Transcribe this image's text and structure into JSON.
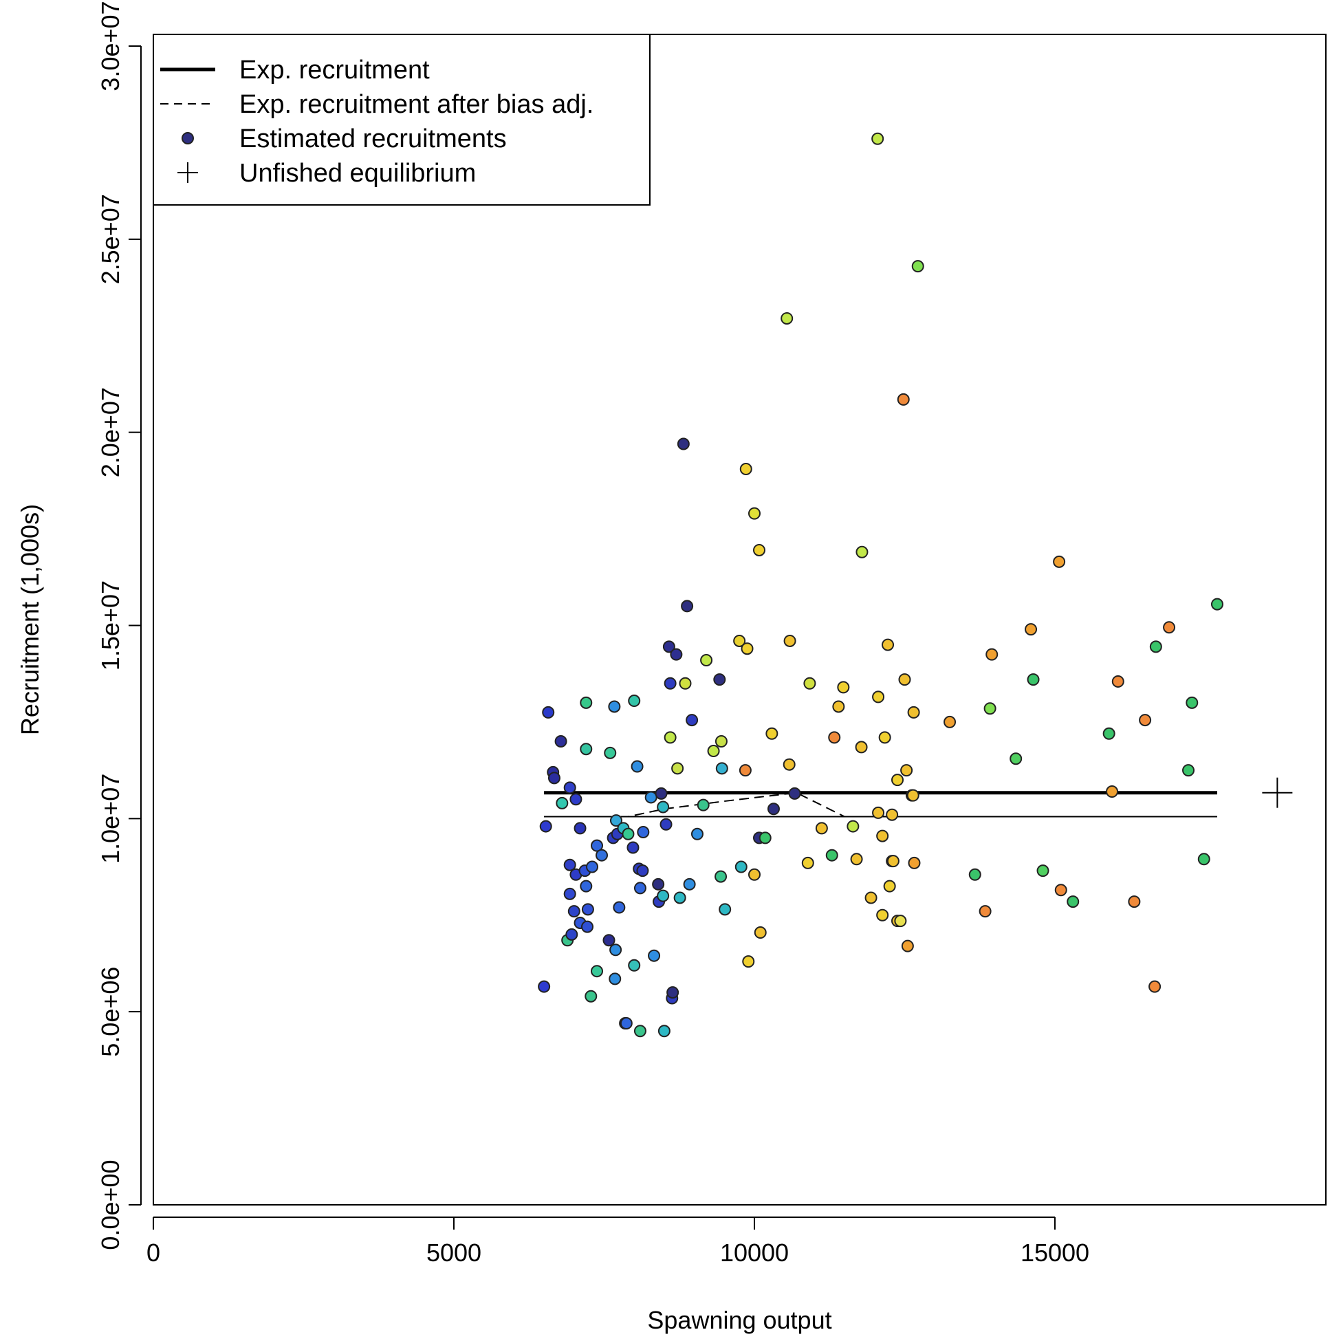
{
  "chart_data": {
    "type": "scatter",
    "xlabel": "Spawning output",
    "ylabel": "Recruitment (1,000s)",
    "xlim": [
      0,
      19500
    ],
    "ylim": [
      0,
      30000000
    ],
    "x_ticks": [
      0,
      5000,
      10000,
      15000
    ],
    "x_tick_labels": [
      "0",
      "5000",
      "10000",
      "15000"
    ],
    "y_ticks": [
      0,
      5000000,
      10000000,
      15000000,
      20000000,
      25000000,
      30000000
    ],
    "y_tick_labels": [
      "0.0e+00",
      "5.0e+06",
      "1.0e+07",
      "1.5e+07",
      "2.0e+07",
      "2.5e+07",
      "3.0e+07"
    ],
    "grid": false,
    "legend": {
      "placement": "top-left",
      "entries": [
        {
          "label": "Exp. recruitment",
          "symbol": "thick-line"
        },
        {
          "label": "Exp. recruitment after bias adj.",
          "symbol": "dashed-line"
        },
        {
          "label": "Estimated recruitments",
          "symbol": "filled-circle"
        },
        {
          "label": "Unfished equilibrium",
          "symbol": "plus"
        }
      ]
    },
    "expected_recruitment": {
      "x": [
        6500,
        17700
      ],
      "y": [
        10670000,
        10670000
      ]
    },
    "bias_adjusted_recruitment": {
      "x": [
        6500,
        7900,
        8500,
        9500,
        10700,
        11500,
        13000,
        17700
      ],
      "y": [
        10050000,
        10050000,
        10250000,
        10450000,
        10670000,
        10050000,
        10050000,
        10050000
      ]
    },
    "unfished_equilibrium": {
      "x": 18700,
      "y": 10670000
    },
    "points": [
      {
        "x": 6500,
        "y": 5650000,
        "color": "#2e3bcf"
      },
      {
        "x": 6530,
        "y": 9800000,
        "color": "#2e3bcf"
      },
      {
        "x": 6570,
        "y": 12750000,
        "color": "#2a3aca"
      },
      {
        "x": 6650,
        "y": 11200000,
        "color": "#2b2d9e"
      },
      {
        "x": 6670,
        "y": 11050000,
        "color": "#2b2d9e"
      },
      {
        "x": 6780,
        "y": 12000000,
        "color": "#2d2f98"
      },
      {
        "x": 6800,
        "y": 10400000,
        "color": "#33c8b0"
      },
      {
        "x": 6890,
        "y": 6850000,
        "color": "#3ac48c"
      },
      {
        "x": 6930,
        "y": 10800000,
        "color": "#3040c8"
      },
      {
        "x": 6930,
        "y": 8800000,
        "color": "#3040c8"
      },
      {
        "x": 6930,
        "y": 8050000,
        "color": "#3048d0"
      },
      {
        "x": 6960,
        "y": 7000000,
        "color": "#2d44c8"
      },
      {
        "x": 7000,
        "y": 7600000,
        "color": "#2d44c8"
      },
      {
        "x": 7030,
        "y": 8550000,
        "color": "#2e3cc8"
      },
      {
        "x": 7030,
        "y": 10500000,
        "color": "#2e3cc8"
      },
      {
        "x": 7100,
        "y": 7300000,
        "color": "#2f55d8"
      },
      {
        "x": 7100,
        "y": 9750000,
        "color": "#2a34b8"
      },
      {
        "x": 7180,
        "y": 8650000,
        "color": "#2f50d5"
      },
      {
        "x": 7200,
        "y": 13000000,
        "color": "#37c88a"
      },
      {
        "x": 7200,
        "y": 11800000,
        "color": "#35c4a0"
      },
      {
        "x": 7200,
        "y": 8250000,
        "color": "#3066dc"
      },
      {
        "x": 7220,
        "y": 7200000,
        "color": "#2f50d5"
      },
      {
        "x": 7230,
        "y": 7650000,
        "color": "#2f50d5"
      },
      {
        "x": 7280,
        "y": 5400000,
        "color": "#3ac48c"
      },
      {
        "x": 7300,
        "y": 8750000,
        "color": "#3066dc"
      },
      {
        "x": 7380,
        "y": 6050000,
        "color": "#38c898"
      },
      {
        "x": 7380,
        "y": 9300000,
        "color": "#3066dc"
      },
      {
        "x": 7460,
        "y": 9050000,
        "color": "#3270dc"
      },
      {
        "x": 7580,
        "y": 6850000,
        "color": "#2b2d90"
      },
      {
        "x": 7600,
        "y": 11700000,
        "color": "#38c898"
      },
      {
        "x": 7650,
        "y": 9500000,
        "color": "#2e3cc0"
      },
      {
        "x": 7670,
        "y": 12900000,
        "color": "#2f8ee0"
      },
      {
        "x": 7680,
        "y": 5850000,
        "color": "#2f8ee0"
      },
      {
        "x": 7690,
        "y": 6600000,
        "color": "#2f8ee0"
      },
      {
        "x": 7700,
        "y": 9950000,
        "color": "#35a8d8"
      },
      {
        "x": 7720,
        "y": 9600000,
        "color": "#2e3cc0"
      },
      {
        "x": 7750,
        "y": 7700000,
        "color": "#3066dc"
      },
      {
        "x": 7820,
        "y": 9750000,
        "color": "#2eb8c4"
      },
      {
        "x": 7850,
        "y": 4700000,
        "color": "#2f55d8"
      },
      {
        "x": 7870,
        "y": 4700000,
        "color": "#3066dc"
      },
      {
        "x": 7900,
        "y": 9600000,
        "color": "#36c890"
      },
      {
        "x": 7980,
        "y": 9250000,
        "color": "#2e3cc0"
      },
      {
        "x": 8000,
        "y": 6200000,
        "color": "#35c0b8"
      },
      {
        "x": 8000,
        "y": 13050000,
        "color": "#33c4a8"
      },
      {
        "x": 8050,
        "y": 11350000,
        "color": "#2f8ee0"
      },
      {
        "x": 8080,
        "y": 8700000,
        "color": "#2e3cc0"
      },
      {
        "x": 8100,
        "y": 8200000,
        "color": "#3066dc"
      },
      {
        "x": 8100,
        "y": 4500000,
        "color": "#3ac48c"
      },
      {
        "x": 8140,
        "y": 8650000,
        "color": "#2e3cc0"
      },
      {
        "x": 8150,
        "y": 9650000,
        "color": "#3066dc"
      },
      {
        "x": 8280,
        "y": 10550000,
        "color": "#2f8ee0"
      },
      {
        "x": 8330,
        "y": 6450000,
        "color": "#2f8ee0"
      },
      {
        "x": 8400,
        "y": 8300000,
        "color": "#2e2f80"
      },
      {
        "x": 8410,
        "y": 7850000,
        "color": "#2e3cc0"
      },
      {
        "x": 8450,
        "y": 10650000,
        "color": "#2e2f80"
      },
      {
        "x": 8480,
        "y": 10300000,
        "color": "#2eb8c4"
      },
      {
        "x": 8480,
        "y": 8000000,
        "color": "#2eb8c4"
      },
      {
        "x": 8500,
        "y": 4500000,
        "color": "#2eb8c4"
      },
      {
        "x": 8530,
        "y": 9850000,
        "color": "#2e3cc0"
      },
      {
        "x": 8580,
        "y": 14450000,
        "color": "#2e2f90"
      },
      {
        "x": 8600,
        "y": 12100000,
        "color": "#c2e84a"
      },
      {
        "x": 8600,
        "y": 13500000,
        "color": "#2e3cc0"
      },
      {
        "x": 8630,
        "y": 5350000,
        "color": "#2e3cc0"
      },
      {
        "x": 8640,
        "y": 5500000,
        "color": "#2e2f80"
      },
      {
        "x": 8700,
        "y": 14250000,
        "color": "#2e2f90"
      },
      {
        "x": 8720,
        "y": 11300000,
        "color": "#c8e048"
      },
      {
        "x": 8760,
        "y": 7950000,
        "color": "#2eb8c4"
      },
      {
        "x": 8820,
        "y": 19700000,
        "color": "#2e2f80"
      },
      {
        "x": 8850,
        "y": 13500000,
        "color": "#d0e040"
      },
      {
        "x": 8880,
        "y": 15500000,
        "color": "#2e2f80"
      },
      {
        "x": 8920,
        "y": 8300000,
        "color": "#2f8ee0"
      },
      {
        "x": 8960,
        "y": 12550000,
        "color": "#2e3cc0"
      },
      {
        "x": 9050,
        "y": 9600000,
        "color": "#2f8ee0"
      },
      {
        "x": 9150,
        "y": 10350000,
        "color": "#3ac48c"
      },
      {
        "x": 9200,
        "y": 14100000,
        "color": "#c2e84a"
      },
      {
        "x": 9320,
        "y": 11750000,
        "color": "#c2e84a"
      },
      {
        "x": 9420,
        "y": 13600000,
        "color": "#2e2f80"
      },
      {
        "x": 9440,
        "y": 8500000,
        "color": "#3ac48c"
      },
      {
        "x": 9450,
        "y": 12000000,
        "color": "#c8e048"
      },
      {
        "x": 9460,
        "y": 11300000,
        "color": "#35b0d0"
      },
      {
        "x": 9510,
        "y": 7650000,
        "color": "#2eb8c4"
      },
      {
        "x": 9750,
        "y": 14600000,
        "color": "#e8d030"
      },
      {
        "x": 9780,
        "y": 8750000,
        "color": "#2eb8c4"
      },
      {
        "x": 9850,
        "y": 11250000,
        "color": "#f08a3a"
      },
      {
        "x": 9860,
        "y": 19050000,
        "color": "#f0d030"
      },
      {
        "x": 9880,
        "y": 14400000,
        "color": "#f0d030"
      },
      {
        "x": 9900,
        "y": 6300000,
        "color": "#f0d030"
      },
      {
        "x": 10000,
        "y": 8550000,
        "color": "#f0c030"
      },
      {
        "x": 10000,
        "y": 17900000,
        "color": "#e0e038"
      },
      {
        "x": 10080,
        "y": 16950000,
        "color": "#f0d030"
      },
      {
        "x": 10080,
        "y": 9500000,
        "color": "#2e2f80"
      },
      {
        "x": 10100,
        "y": 7050000,
        "color": "#f0c030"
      },
      {
        "x": 10180,
        "y": 9500000,
        "color": "#3ac46a"
      },
      {
        "x": 10290,
        "y": 12200000,
        "color": "#f0d030"
      },
      {
        "x": 10320,
        "y": 10250000,
        "color": "#2e2f80"
      },
      {
        "x": 10540,
        "y": 22950000,
        "color": "#c2e84a"
      },
      {
        "x": 10580,
        "y": 11400000,
        "color": "#f0c030"
      },
      {
        "x": 10590,
        "y": 14600000,
        "color": "#f0c030"
      },
      {
        "x": 10670,
        "y": 10650000,
        "color": "#2e2f80"
      },
      {
        "x": 10890,
        "y": 8850000,
        "color": "#f0d030"
      },
      {
        "x": 10920,
        "y": 13500000,
        "color": "#d0e040"
      },
      {
        "x": 11120,
        "y": 9750000,
        "color": "#f0c030"
      },
      {
        "x": 11290,
        "y": 9050000,
        "color": "#3ac46a"
      },
      {
        "x": 11330,
        "y": 12100000,
        "color": "#f08a3a"
      },
      {
        "x": 11400,
        "y": 12900000,
        "color": "#f0c030"
      },
      {
        "x": 11480,
        "y": 13400000,
        "color": "#f0d030"
      },
      {
        "x": 11640,
        "y": 9800000,
        "color": "#c2e84a"
      },
      {
        "x": 11700,
        "y": 8950000,
        "color": "#f0c030"
      },
      {
        "x": 11780,
        "y": 11850000,
        "color": "#f0c030"
      },
      {
        "x": 11790,
        "y": 16900000,
        "color": "#c2e84a"
      },
      {
        "x": 11940,
        "y": 7950000,
        "color": "#f0c030"
      },
      {
        "x": 12050,
        "y": 27600000,
        "color": "#c2e84a"
      },
      {
        "x": 12060,
        "y": 10150000,
        "color": "#f0c030"
      },
      {
        "x": 12060,
        "y": 13150000,
        "color": "#f0d030"
      },
      {
        "x": 12130,
        "y": 7500000,
        "color": "#f0d030"
      },
      {
        "x": 12130,
        "y": 9550000,
        "color": "#f0c030"
      },
      {
        "x": 12170,
        "y": 12100000,
        "color": "#f0d030"
      },
      {
        "x": 12220,
        "y": 14500000,
        "color": "#f0c030"
      },
      {
        "x": 12250,
        "y": 8250000,
        "color": "#f0d030"
      },
      {
        "x": 12290,
        "y": 8900000,
        "color": "#f0d030"
      },
      {
        "x": 12290,
        "y": 10100000,
        "color": "#f0c030"
      },
      {
        "x": 12310,
        "y": 8900000,
        "color": "#f0c030"
      },
      {
        "x": 12380,
        "y": 7350000,
        "color": "#f0c030"
      },
      {
        "x": 12380,
        "y": 11000000,
        "color": "#f0d030"
      },
      {
        "x": 12430,
        "y": 7350000,
        "color": "#e8e050"
      },
      {
        "x": 12480,
        "y": 20850000,
        "color": "#f08a3a"
      },
      {
        "x": 12500,
        "y": 13600000,
        "color": "#f0c030"
      },
      {
        "x": 12530,
        "y": 11250000,
        "color": "#f0c030"
      },
      {
        "x": 12550,
        "y": 6700000,
        "color": "#f0a030"
      },
      {
        "x": 12620,
        "y": 10600000,
        "color": "#3ac46a"
      },
      {
        "x": 12640,
        "y": 10600000,
        "color": "#f0c030"
      },
      {
        "x": 12650,
        "y": 12750000,
        "color": "#f0c030"
      },
      {
        "x": 12660,
        "y": 8850000,
        "color": "#f0a030"
      },
      {
        "x": 12720,
        "y": 24300000,
        "color": "#80e050"
      },
      {
        "x": 13250,
        "y": 12500000,
        "color": "#f0a030"
      },
      {
        "x": 13670,
        "y": 8550000,
        "color": "#3ac46a"
      },
      {
        "x": 13840,
        "y": 7600000,
        "color": "#f08a3a"
      },
      {
        "x": 13920,
        "y": 12850000,
        "color": "#80e050"
      },
      {
        "x": 13950,
        "y": 14250000,
        "color": "#f0a030"
      },
      {
        "x": 14350,
        "y": 11550000,
        "color": "#50d060"
      },
      {
        "x": 14600,
        "y": 14900000,
        "color": "#f0a030"
      },
      {
        "x": 14640,
        "y": 13600000,
        "color": "#3ac46a"
      },
      {
        "x": 14800,
        "y": 8650000,
        "color": "#50d060"
      },
      {
        "x": 15070,
        "y": 16650000,
        "color": "#f0a030"
      },
      {
        "x": 15100,
        "y": 8150000,
        "color": "#f08a3a"
      },
      {
        "x": 15300,
        "y": 7850000,
        "color": "#3ac46a"
      },
      {
        "x": 15900,
        "y": 12200000,
        "color": "#3ac46a"
      },
      {
        "x": 15950,
        "y": 10700000,
        "color": "#f0a030"
      },
      {
        "x": 16050,
        "y": 13550000,
        "color": "#f08a3a"
      },
      {
        "x": 16320,
        "y": 7850000,
        "color": "#f08a3a"
      },
      {
        "x": 16500,
        "y": 12550000,
        "color": "#f08a3a"
      },
      {
        "x": 16660,
        "y": 5650000,
        "color": "#f08a3a"
      },
      {
        "x": 16680,
        "y": 14450000,
        "color": "#3ac46a"
      },
      {
        "x": 16900,
        "y": 14950000,
        "color": "#f08a3a"
      },
      {
        "x": 17220,
        "y": 11250000,
        "color": "#3ac46a"
      },
      {
        "x": 17280,
        "y": 13000000,
        "color": "#3ac46a"
      },
      {
        "x": 17480,
        "y": 8950000,
        "color": "#3ac46a"
      },
      {
        "x": 17700,
        "y": 15550000,
        "color": "#3ac46a"
      }
    ]
  }
}
